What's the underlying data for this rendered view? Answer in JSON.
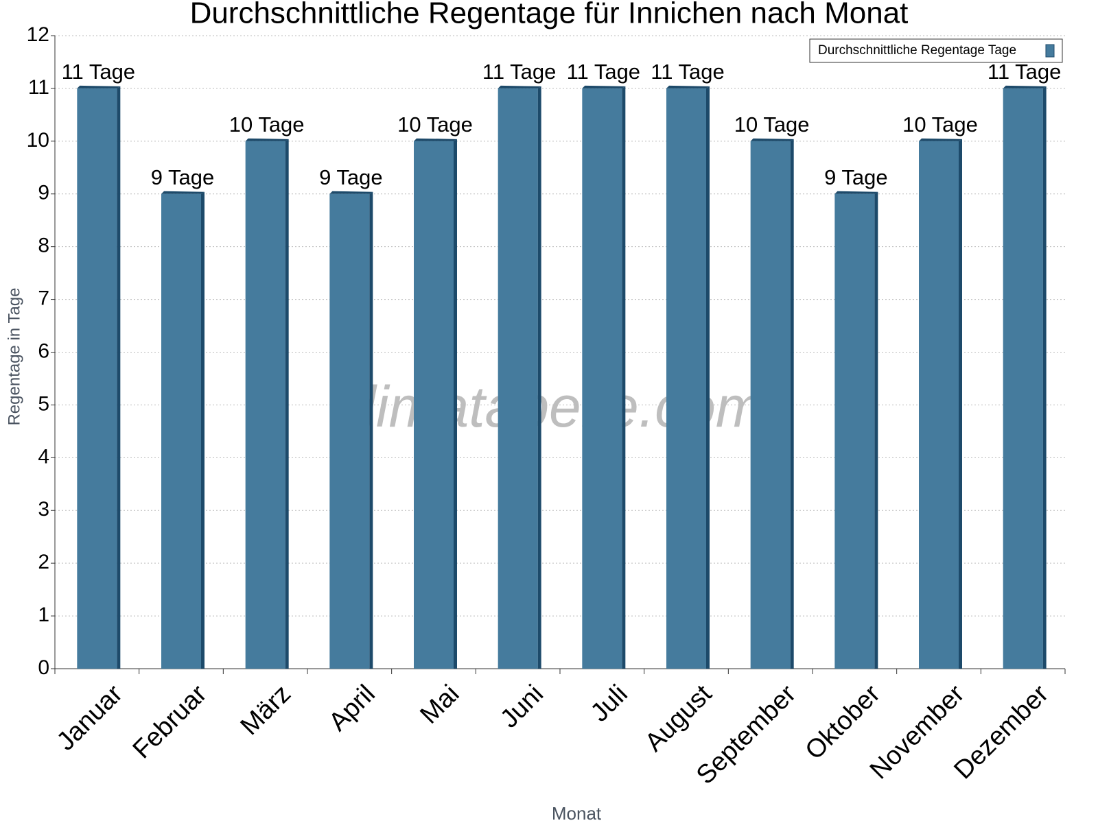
{
  "chart_data": {
    "type": "bar",
    "title": "Durchschnittliche Regentage für Innichen nach Monat",
    "watermark": "klimatabelle.com",
    "x_label": "Monat",
    "y_label": "Regentage in Tage",
    "categories": [
      "Januar",
      "Februar",
      "März",
      "April",
      "Mai",
      "Juni",
      "Juli",
      "August",
      "September",
      "Oktober",
      "November",
      "Dezember"
    ],
    "series": [
      {
        "name": "Durchschnittliche Regentage Tage",
        "color": "#457b9d",
        "values": [
          11,
          9,
          10,
          9,
          10,
          11,
          11,
          11,
          10,
          9,
          10,
          11
        ],
        "value_labels": [
          "11 Tage",
          "9 Tage",
          "10 Tage",
          "9 Tage",
          "10 Tage",
          "11 Tage",
          "11 Tage",
          "11 Tage",
          "10 Tage",
          "9 Tage",
          "10 Tage",
          "11 Tage"
        ]
      }
    ],
    "ylim": [
      0,
      12
    ],
    "yticks": [
      0,
      1,
      2,
      3,
      4,
      5,
      6,
      7,
      8,
      9,
      10,
      11,
      12
    ],
    "grid": true,
    "legend": "top-right"
  }
}
